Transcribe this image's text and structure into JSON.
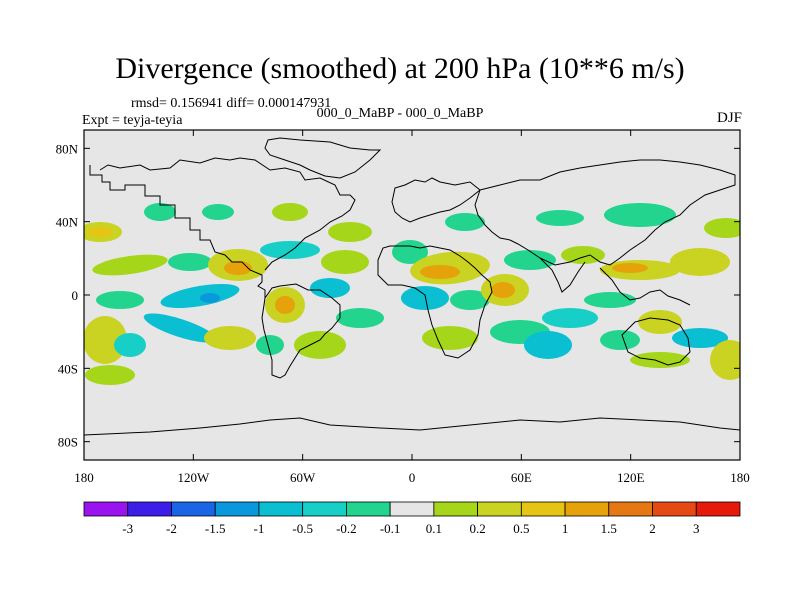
{
  "title": "Divergence (smoothed) at 200 hPa (10**6 m/s)",
  "stats_text": "rmsd= 0.156941 diff= 0.000147931",
  "runs_text": "000_0_MaBP - 000_0_MaBP",
  "experiment_text": "Expt = teyja-teyia",
  "season": "DJF",
  "chart_data": {
    "type": "heatmap",
    "title": "Divergence (smoothed) at 200 hPa (10**6 m/s)",
    "units": "10**6 m/s",
    "level": "200 hPa",
    "x_ticks": [
      "180",
      "120W",
      "60W",
      "0",
      "60E",
      "120E",
      "180"
    ],
    "x_tick_values": [
      -180,
      -120,
      -60,
      0,
      60,
      120,
      180
    ],
    "y_ticks": [
      "80N",
      "40N",
      "0",
      "40S",
      "80S"
    ],
    "y_tick_values": [
      80,
      40,
      0,
      -40,
      -80
    ],
    "xlim": [
      -180,
      180
    ],
    "ylim": [
      -90,
      90
    ],
    "colorbar_labels": [
      "-3",
      "-2",
      "-1.5",
      "-1",
      "-0.5",
      "-0.2",
      "-0.1",
      "0.1",
      "0.2",
      "0.5",
      "1",
      "1.5",
      "2",
      "3"
    ],
    "colorbar_colors": [
      "#9a14f0",
      "#3c1ee8",
      "#1a64e6",
      "#0a98dc",
      "#0abfd2",
      "#18cfc8",
      "#22d48e",
      "#e6e6e6",
      "#a6d61a",
      "#cad222",
      "#e6c414",
      "#e6a20a",
      "#e67814",
      "#e64a14",
      "#e61a0a"
    ]
  }
}
